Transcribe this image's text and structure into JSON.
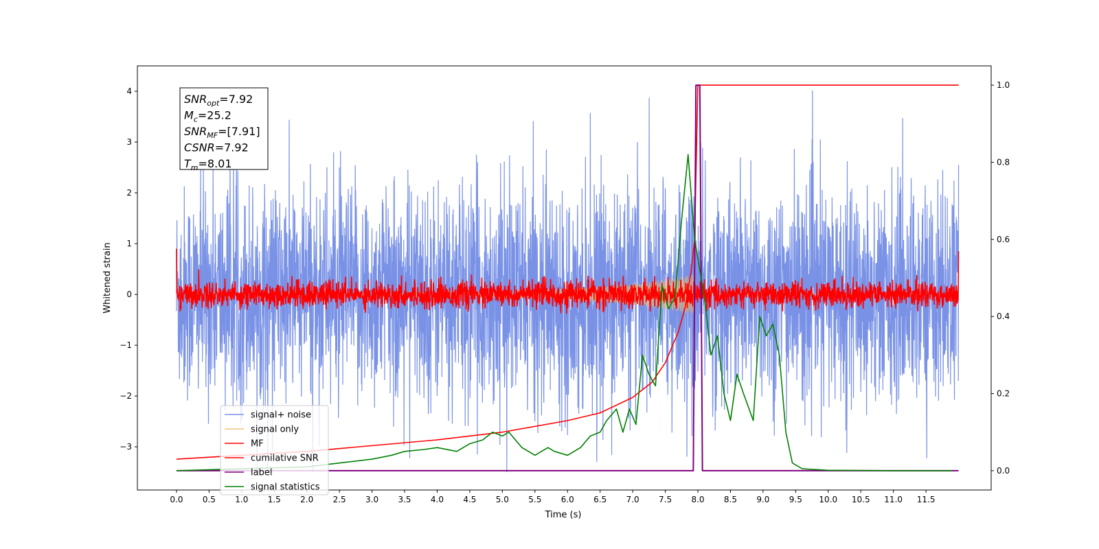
{
  "chart_data": {
    "type": "line",
    "xlabel": "Time (s)",
    "ylabel_left": "Whitened strain",
    "ylabel_right": "",
    "xlim": [
      -0.6,
      12.5
    ],
    "ylim_left": [
      -3.85,
      4.5
    ],
    "ylim_right": [
      -0.05,
      1.05
    ],
    "x_ticks": [
      "0.0",
      "0.5",
      "1.0",
      "1.5",
      "2.0",
      "2.5",
      "3.0",
      "3.5",
      "4.0",
      "4.5",
      "5.0",
      "5.5",
      "6.0",
      "6.5",
      "7.0",
      "7.5",
      "8.0",
      "8.5",
      "9.0",
      "9.5",
      "10.0",
      "10.5",
      "11.0",
      "11.5"
    ],
    "y_ticks_left": [
      "−3",
      "−2",
      "−1",
      "0",
      "1",
      "2",
      "3",
      "4"
    ],
    "y_ticks_right": [
      "0.0",
      "0.2",
      "0.4",
      "0.6",
      "0.8",
      "1.0"
    ],
    "grid": false,
    "legend_position": "lower-left",
    "annotation": [
      {
        "main": "SNR",
        "sub": "opt",
        "value": "=7.92"
      },
      {
        "main": "M",
        "sub": "c",
        "value": "=25.2"
      },
      {
        "main": "SNR",
        "sub": "MF",
        "value": "=[7.91]"
      },
      {
        "main": "CSNR",
        "sub": "",
        "value": "=7.92"
      },
      {
        "main": "T",
        "sub": "m",
        "value": "=8.01"
      }
    ],
    "series": [
      {
        "name": "signal+ noise",
        "axis": "left",
        "color": "#7992e6",
        "style": "noise band approx. −2 to +2, peaks ±3.5",
        "x_range": [
          0,
          12
        ]
      },
      {
        "name": "signal only",
        "axis": "left",
        "color": "#f5b45c",
        "style": "chirp growing to amplitude ≈0.4 near 7.9 s",
        "x_range": [
          0,
          12
        ]
      },
      {
        "name": "MF",
        "axis": "left",
        "color": "#ff0000",
        "style": "oscillation approx. ±0.3 around 0",
        "x_range": [
          0,
          12
        ]
      },
      {
        "name": "cumilative SNR",
        "axis": "right",
        "color": "#ff0000",
        "x": [
          0.0,
          1.0,
          2.0,
          3.0,
          4.0,
          5.0,
          6.0,
          6.5,
          7.0,
          7.3,
          7.5,
          7.7,
          7.8,
          7.9,
          7.95,
          8.0,
          8.05,
          9.0,
          10.0,
          11.0,
          12.0
        ],
        "y": [
          0.03,
          0.04,
          0.05,
          0.065,
          0.08,
          0.1,
          0.13,
          0.15,
          0.19,
          0.23,
          0.28,
          0.36,
          0.42,
          0.52,
          0.6,
          1.0,
          1.0,
          1.0,
          1.0,
          1.0,
          1.0
        ]
      },
      {
        "name": "label",
        "axis": "right",
        "color": "#800080",
        "x": [
          0.0,
          7.93,
          7.97,
          8.03,
          8.07,
          12.0
        ],
        "y": [
          0.0,
          0.0,
          1.0,
          1.0,
          0.0,
          0.0
        ]
      },
      {
        "name": "signal statistics",
        "axis": "right",
        "color": "#008000",
        "x": [
          0.0,
          1.0,
          2.0,
          2.5,
          3.0,
          3.3,
          3.5,
          3.8,
          4.0,
          4.3,
          4.5,
          4.7,
          4.85,
          5.0,
          5.1,
          5.3,
          5.5,
          5.7,
          5.8,
          6.0,
          6.2,
          6.35,
          6.5,
          6.6,
          6.75,
          6.85,
          6.95,
          7.05,
          7.15,
          7.25,
          7.35,
          7.45,
          7.55,
          7.65,
          7.75,
          7.85,
          7.95,
          8.0,
          8.1,
          8.2,
          8.3,
          8.4,
          8.5,
          8.6,
          8.7,
          8.85,
          8.95,
          9.05,
          9.15,
          9.25,
          9.35,
          9.45,
          9.6,
          10.0,
          11.0,
          11.9
        ],
        "y": [
          0.0,
          0.005,
          0.01,
          0.02,
          0.03,
          0.04,
          0.05,
          0.055,
          0.06,
          0.05,
          0.07,
          0.08,
          0.1,
          0.09,
          0.1,
          0.06,
          0.04,
          0.06,
          0.05,
          0.04,
          0.06,
          0.09,
          0.1,
          0.13,
          0.16,
          0.1,
          0.16,
          0.12,
          0.3,
          0.25,
          0.22,
          0.48,
          0.42,
          0.45,
          0.65,
          0.82,
          0.6,
          0.55,
          0.45,
          0.3,
          0.35,
          0.2,
          0.13,
          0.25,
          0.2,
          0.13,
          0.4,
          0.35,
          0.38,
          0.3,
          0.1,
          0.02,
          0.005,
          0.001,
          0.0,
          0.0
        ]
      }
    ]
  }
}
